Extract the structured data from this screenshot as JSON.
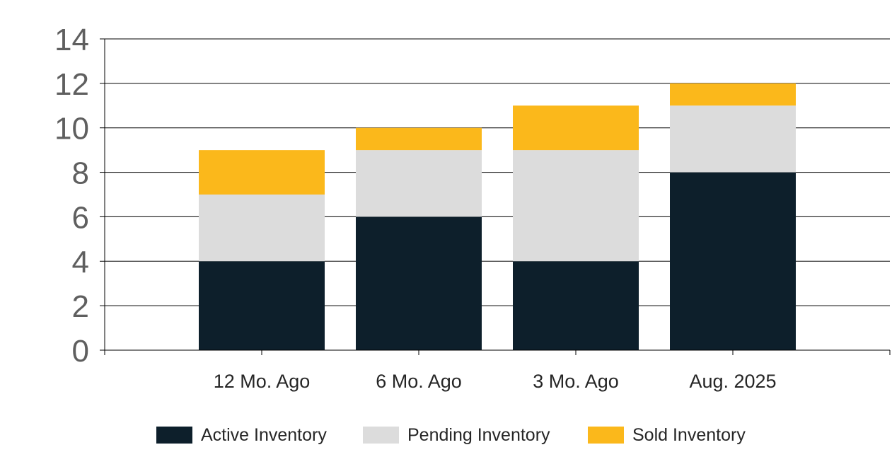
{
  "chart_data": {
    "type": "bar",
    "stacked": true,
    "categories": [
      "12 Mo. Ago",
      "6 Mo. Ago",
      "3 Mo. Ago",
      "Aug. 2025"
    ],
    "series": [
      {
        "name": "Active Inventory",
        "values": [
          4,
          6,
          4,
          8
        ],
        "color": "#0d1f2b"
      },
      {
        "name": "Pending Inventory",
        "values": [
          3,
          3,
          5,
          3
        ],
        "color": "#dcdcdc"
      },
      {
        "name": "Sold Inventory",
        "values": [
          2,
          1,
          2,
          1
        ],
        "color": "#fbb81b"
      }
    ],
    "ylim": [
      0,
      14
    ],
    "yticks": [
      "0",
      "2",
      "4",
      "6",
      "8",
      "10",
      "12",
      "14"
    ],
    "grid": true,
    "legend_position": "bottom"
  }
}
